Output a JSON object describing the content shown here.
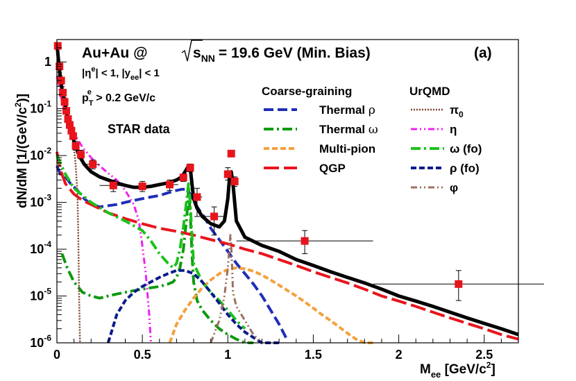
{
  "chart_data": {
    "type": "line",
    "title": "Au+Au @ √s_NN = 19.6 GeV (Min. Bias)",
    "title_parts": {
      "system": "Au+Au @",
      "sqrt": "s",
      "sqrt_sub": "NN",
      "rest": "= 19.6 GeV (Min. Bias)"
    },
    "panel_label": "(a)",
    "cuts": {
      "eta_line": {
        "a": "|η",
        "sup": "e",
        "b": "| < 1, |y",
        "sub": "ee",
        "c": "| < 1"
      },
      "pt_line": {
        "a": "p",
        "sub": "T",
        "sup": "e",
        "b": " > 0.2 GeV/c"
      }
    },
    "data_label": "STAR data",
    "xlabel": {
      "main": "M",
      "sub": "ee",
      "unit": " [GeV/c",
      "sup": "2",
      "close": "]"
    },
    "ylabel": {
      "main": "dN/dM [1/(GeV/c",
      "sup": "2",
      "close": ")]"
    },
    "xlim": [
      0,
      2.7
    ],
    "ylim": [
      1e-06,
      3
    ],
    "yscale": "log",
    "x_ticks": [
      0,
      0.5,
      1,
      1.5,
      2,
      2.5
    ],
    "x_tick_labels": [
      "0",
      "0.5",
      "1",
      "1.5",
      "2",
      "2.5"
    ],
    "y_ticks": [
      1e-06,
      1e-05,
      0.0001,
      0.001,
      0.01,
      0.1,
      1
    ],
    "y_tick_labels": [
      {
        "base": "10",
        "exp": "-6"
      },
      {
        "base": "10",
        "exp": "-5"
      },
      {
        "base": "10",
        "exp": "-4"
      },
      {
        "base": "10",
        "exp": "-3"
      },
      {
        "base": "10",
        "exp": "-2"
      },
      {
        "base": "10",
        "exp": "-1"
      },
      {
        "base": "1",
        "exp": ""
      }
    ],
    "legend_headers": {
      "left": "Coarse-graining",
      "right": "UrQMD"
    },
    "grid": false,
    "legend_position": "top-right",
    "series": [
      {
        "name": "Thermal ρ",
        "group": "Coarse-graining",
        "legend": [
          "Thermal ",
          "ρ",
          ""
        ],
        "color": "#1f2db8",
        "style": "dash",
        "x": [
          0.0,
          0.02,
          0.05,
          0.08,
          0.12,
          0.16,
          0.2,
          0.25,
          0.3,
          0.35,
          0.4,
          0.45,
          0.5,
          0.55,
          0.6,
          0.65,
          0.7,
          0.73,
          0.75,
          0.77,
          0.79,
          0.82,
          0.86,
          0.9,
          0.95,
          1.0,
          1.05,
          1.1,
          1.15,
          1.2,
          1.25,
          1.3,
          1.35
        ],
        "y": [
          0.006,
          0.004,
          0.0035,
          0.0025,
          0.0018,
          0.0012,
          0.0009,
          0.0008,
          0.00085,
          0.0009,
          0.001,
          0.0011,
          0.0012,
          0.0013,
          0.0014,
          0.0016,
          0.0018,
          0.0019,
          0.0019,
          0.0017,
          0.0013,
          0.0008,
          0.0005,
          0.00028,
          0.00016,
          9e-05,
          5e-05,
          3e-05,
          1.8e-05,
          1e-05,
          5e-06,
          2.5e-06,
          1.1e-06
        ]
      },
      {
        "name": "Thermal ω",
        "group": "Coarse-graining",
        "legend": [
          "Thermal ",
          "ω",
          ""
        ],
        "color": "#0e9a0e",
        "style": "dashdot",
        "x": [
          0.03,
          0.06,
          0.1,
          0.15,
          0.2,
          0.25,
          0.3,
          0.35,
          0.4,
          0.45,
          0.5,
          0.55,
          0.6,
          0.65,
          0.68,
          0.7,
          0.72,
          0.74,
          0.76,
          0.77,
          0.78,
          0.79,
          0.8,
          0.82,
          0.85,
          0.9,
          0.95,
          1.0,
          1.05,
          1.1,
          1.15
        ],
        "y": [
          8e-05,
          4e-05,
          2e-05,
          1.2e-05,
          1e-05,
          9e-06,
          1e-05,
          1.1e-05,
          1.2e-05,
          1.3e-05,
          1.4e-05,
          1.5e-05,
          1.6e-05,
          1.8e-05,
          2e-05,
          2.5e-05,
          4e-05,
          0.0001,
          0.0005,
          0.0019,
          0.0006,
          8e-05,
          2e-05,
          8e-06,
          5e-06,
          3e-06,
          2e-06,
          1.5e-06,
          1.2e-06,
          1e-06,
          9e-07
        ]
      },
      {
        "name": "Multi-pion",
        "group": "Coarse-graining",
        "legend": [
          "Multi-pion",
          "",
          ""
        ],
        "color": "#f4a13e",
        "style": "shortdash",
        "x": [
          0.66,
          0.7,
          0.75,
          0.8,
          0.85,
          0.9,
          0.95,
          1.0,
          1.05,
          1.1,
          1.15,
          1.2,
          1.25,
          1.3,
          1.35,
          1.4,
          1.45,
          1.5,
          1.55,
          1.6,
          1.65,
          1.7,
          1.75,
          1.8,
          1.85
        ],
        "y": [
          1e-06,
          2.5e-06,
          5e-06,
          9e-06,
          1.5e-05,
          2.2e-05,
          3e-05,
          3.7e-05,
          4e-05,
          3.8e-05,
          3.4e-05,
          2.8e-05,
          2.2e-05,
          1.7e-05,
          1.3e-05,
          1e-05,
          7.5e-06,
          5.5e-06,
          4e-06,
          3e-06,
          2.2e-06,
          1.6e-06,
          1.2e-06,
          9e-07,
          6e-07
        ]
      },
      {
        "name": "QGP",
        "group": "Coarse-graining",
        "legend": [
          "QGP",
          "",
          ""
        ],
        "color": "#e8141c",
        "style": "longdash",
        "x": [
          0.0,
          0.02,
          0.05,
          0.1,
          0.15,
          0.2,
          0.3,
          0.4,
          0.5,
          0.6,
          0.7,
          0.8,
          0.9,
          1.0,
          1.1,
          1.2,
          1.3,
          1.4,
          1.5,
          1.6,
          1.7,
          1.8,
          1.9,
          2.0,
          2.1,
          2.2,
          2.3,
          2.4,
          2.5,
          2.6,
          2.7
        ],
        "y": [
          0.012,
          0.005,
          0.0025,
          0.0015,
          0.0011,
          0.0009,
          0.0006,
          0.00045,
          0.00035,
          0.00028,
          0.00024,
          0.0002,
          0.00016,
          0.00013,
          0.0001,
          8e-05,
          6e-05,
          4.5e-05,
          3.3e-05,
          2.5e-05,
          1.9e-05,
          1.4e-05,
          1e-05,
          7.8e-06,
          6e-06,
          4.5e-06,
          3.4e-06,
          2.6e-06,
          2e-06,
          1.5e-06,
          1.2e-06
        ]
      },
      {
        "name": "π0",
        "group": "UrQMD",
        "legend": [
          "π",
          "",
          "0"
        ],
        "color": "#7b3f2a",
        "style": "dot",
        "x": [
          0.0,
          0.02,
          0.04,
          0.06,
          0.08,
          0.1,
          0.11,
          0.12,
          0.125,
          0.13,
          0.135
        ],
        "y": [
          2.0,
          0.7,
          0.28,
          0.11,
          0.045,
          0.015,
          0.006,
          0.0015,
          0.0002,
          1e-05,
          1e-06
        ]
      },
      {
        "name": "η",
        "group": "UrQMD",
        "legend": [
          "η",
          "",
          ""
        ],
        "color": "#f020f0",
        "style": "dashdotdot",
        "x": [
          0.0,
          0.02,
          0.05,
          0.1,
          0.15,
          0.2,
          0.25,
          0.3,
          0.35,
          0.4,
          0.45,
          0.48,
          0.5,
          0.52,
          0.54,
          0.55
        ],
        "y": [
          0.5,
          0.2,
          0.08,
          0.03,
          0.015,
          0.009,
          0.006,
          0.0042,
          0.003,
          0.0018,
          0.0009,
          0.0004,
          0.00012,
          3e-05,
          4e-06,
          1e-06
        ]
      },
      {
        "name": "ω (fo)",
        "group": "UrQMD",
        "legend": [
          "ω",
          " (fo)",
          ""
        ],
        "color": "#1bc21b",
        "style": "dashdot",
        "x": [
          0.0,
          0.05,
          0.1,
          0.2,
          0.3,
          0.4,
          0.5,
          0.55,
          0.6,
          0.65,
          0.68,
          0.7,
          0.72,
          0.74,
          0.76,
          0.77,
          0.78,
          0.79,
          0.8,
          0.85,
          0.9,
          0.95,
          1.0,
          1.05,
          1.1
        ],
        "y": [
          0.01,
          0.004,
          0.002,
          0.001,
          0.0006,
          0.0004,
          0.00025,
          0.00015,
          8e-05,
          5e-05,
          4e-05,
          5e-05,
          0.0001,
          0.0003,
          0.0012,
          0.0025,
          0.001,
          0.0002,
          5e-05,
          2e-05,
          1.2e-05,
          8e-06,
          5e-06,
          3e-06,
          2e-06
        ]
      },
      {
        "name": "ρ (fo)",
        "group": "UrQMD",
        "legend": [
          "ρ",
          " (fo)",
          ""
        ],
        "color": "#0b1a8c",
        "style": "shortdash",
        "x": [
          0.3,
          0.35,
          0.4,
          0.45,
          0.5,
          0.55,
          0.6,
          0.65,
          0.7,
          0.75,
          0.8,
          0.85,
          0.9,
          0.95,
          1.0,
          1.05,
          1.1,
          1.15,
          1.2,
          1.25,
          1.3
        ],
        "y": [
          1e-06,
          4e-06,
          8e-06,
          1.2e-05,
          1.6e-05,
          2e-05,
          2.5e-05,
          3e-05,
          3.5e-05,
          3.5e-05,
          3e-05,
          2e-05,
          1.2e-05,
          7e-06,
          4e-06,
          2.5e-06,
          1.7e-06,
          1.3e-06,
          1e-06,
          8e-07,
          6e-07
        ]
      },
      {
        "name": "φ",
        "group": "UrQMD",
        "legend": [
          "φ",
          "",
          ""
        ],
        "color": "#9c7060",
        "style": "dashdotdot",
        "x": [
          0.9,
          0.95,
          0.98,
          1.0,
          1.01,
          1.015,
          1.02,
          1.025,
          1.03,
          1.05,
          1.1,
          1.15,
          1.2
        ],
        "y": [
          1e-06,
          3e-06,
          1e-05,
          4e-05,
          0.00012,
          0.0002,
          0.00012,
          4e-05,
          1.2e-05,
          6e-06,
          3e-06,
          1.5e-06,
          1e-06
        ]
      },
      {
        "name": "Total",
        "group": "",
        "legend": [
          "",
          "",
          ""
        ],
        "color": "#000000",
        "style": "solid",
        "x": [
          0.0,
          0.01,
          0.02,
          0.03,
          0.05,
          0.07,
          0.1,
          0.13,
          0.16,
          0.2,
          0.25,
          0.3,
          0.35,
          0.4,
          0.45,
          0.5,
          0.55,
          0.6,
          0.65,
          0.7,
          0.73,
          0.75,
          0.77,
          0.78,
          0.79,
          0.8,
          0.82,
          0.85,
          0.9,
          0.95,
          0.98,
          1.0,
          1.01,
          1.02,
          1.03,
          1.05,
          1.1,
          1.2,
          1.3,
          1.4,
          1.5,
          1.6,
          1.7,
          1.8,
          1.9,
          2.0,
          2.1,
          2.2,
          2.3,
          2.4,
          2.5,
          2.6,
          2.7
        ],
        "y": [
          2.5,
          1.0,
          0.45,
          0.25,
          0.11,
          0.05,
          0.02,
          0.01,
          0.0065,
          0.0045,
          0.0035,
          0.003,
          0.0026,
          0.0023,
          0.0021,
          0.0021,
          0.0022,
          0.0024,
          0.0026,
          0.003,
          0.0035,
          0.0045,
          0.006,
          0.0055,
          0.0025,
          0.0012,
          0.00075,
          0.0005,
          0.00035,
          0.0003,
          0.0004,
          0.0012,
          0.0035,
          0.0045,
          0.0025,
          0.0004,
          0.00018,
          0.00012,
          9e-05,
          6e-05,
          4.5e-05,
          3.3e-05,
          2.5e-05,
          1.9e-05,
          1.4e-05,
          1e-05,
          7.8e-06,
          6e-06,
          4.5e-06,
          3.4e-06,
          2.6e-06,
          2e-06,
          1.5e-06
        ]
      }
    ],
    "data_points": {
      "name": "STAR data",
      "color": "#e8141c",
      "points": [
        {
          "x": 0.005,
          "y": 2.2,
          "ylo": 2.2,
          "yhi": 2.2,
          "xerr": 0.005
        },
        {
          "x": 0.015,
          "y": 0.8,
          "ylo": 0.8,
          "yhi": 0.8,
          "xerr": 0.005
        },
        {
          "x": 0.025,
          "y": 0.4,
          "ylo": 0.4,
          "yhi": 0.4,
          "xerr": 0.005
        },
        {
          "x": 0.035,
          "y": 0.22,
          "ylo": 0.22,
          "yhi": 0.22,
          "xerr": 0.005
        },
        {
          "x": 0.045,
          "y": 0.14,
          "ylo": 0.14,
          "yhi": 0.14,
          "xerr": 0.005
        },
        {
          "x": 0.055,
          "y": 0.09,
          "ylo": 0.09,
          "yhi": 0.09,
          "xerr": 0.005
        },
        {
          "x": 0.065,
          "y": 0.06,
          "ylo": 0.06,
          "yhi": 0.06,
          "xerr": 0.005
        },
        {
          "x": 0.075,
          "y": 0.045,
          "ylo": 0.045,
          "yhi": 0.045,
          "xerr": 0.005
        },
        {
          "x": 0.085,
          "y": 0.034,
          "ylo": 0.034,
          "yhi": 0.034,
          "xerr": 0.005
        },
        {
          "x": 0.095,
          "y": 0.026,
          "ylo": 0.026,
          "yhi": 0.026,
          "xerr": 0.005
        },
        {
          "x": 0.11,
          "y": 0.016,
          "ylo": 0.013,
          "yhi": 0.02,
          "xerr": 0.01
        },
        {
          "x": 0.14,
          "y": 0.0105,
          "ylo": 0.0085,
          "yhi": 0.013,
          "xerr": 0.02
        },
        {
          "x": 0.21,
          "y": 0.0065,
          "ylo": 0.0052,
          "yhi": 0.008,
          "xerr": 0.04
        },
        {
          "x": 0.33,
          "y": 0.0023,
          "ylo": 0.0017,
          "yhi": 0.003,
          "xerr": 0.08
        },
        {
          "x": 0.5,
          "y": 0.0022,
          "ylo": 0.0017,
          "yhi": 0.0028,
          "xerr": 0.07
        },
        {
          "x": 0.66,
          "y": 0.0024,
          "ylo": 0.0018,
          "yhi": 0.003,
          "xerr": 0.05
        },
        {
          "x": 0.74,
          "y": 0.0034,
          "ylo": 0.0028,
          "yhi": 0.004,
          "xerr": 0.02
        },
        {
          "x": 0.78,
          "y": 0.0055,
          "ylo": 0.0045,
          "yhi": 0.0066,
          "xerr": 0.01
        },
        {
          "x": 0.82,
          "y": 0.0013,
          "ylo": 0.0005,
          "yhi": 0.002,
          "xerr": 0.03
        },
        {
          "x": 0.92,
          "y": 0.0005,
          "ylo": 0.0002,
          "yhi": 0.0008,
          "xerr": 0.06
        },
        {
          "x": 1.0,
          "y": 0.004,
          "ylo": 0.003,
          "yhi": 0.0055,
          "xerr": 0.01
        },
        {
          "x": 1.02,
          "y": 0.011,
          "ylo": 0.011,
          "yhi": 0.011,
          "xerr": 0.01
        },
        {
          "x": 1.04,
          "y": 0.0028,
          "ylo": 0.0022,
          "yhi": 0.0035,
          "xerr": 0.01
        },
        {
          "x": 1.45,
          "y": 0.00015,
          "ylo": 8e-05,
          "yhi": 0.00025,
          "xerr": 0.4
        },
        {
          "x": 2.35,
          "y": 1.8e-05,
          "ylo": 8e-06,
          "yhi": 3.5e-05,
          "xerr": 0.5
        }
      ]
    }
  }
}
